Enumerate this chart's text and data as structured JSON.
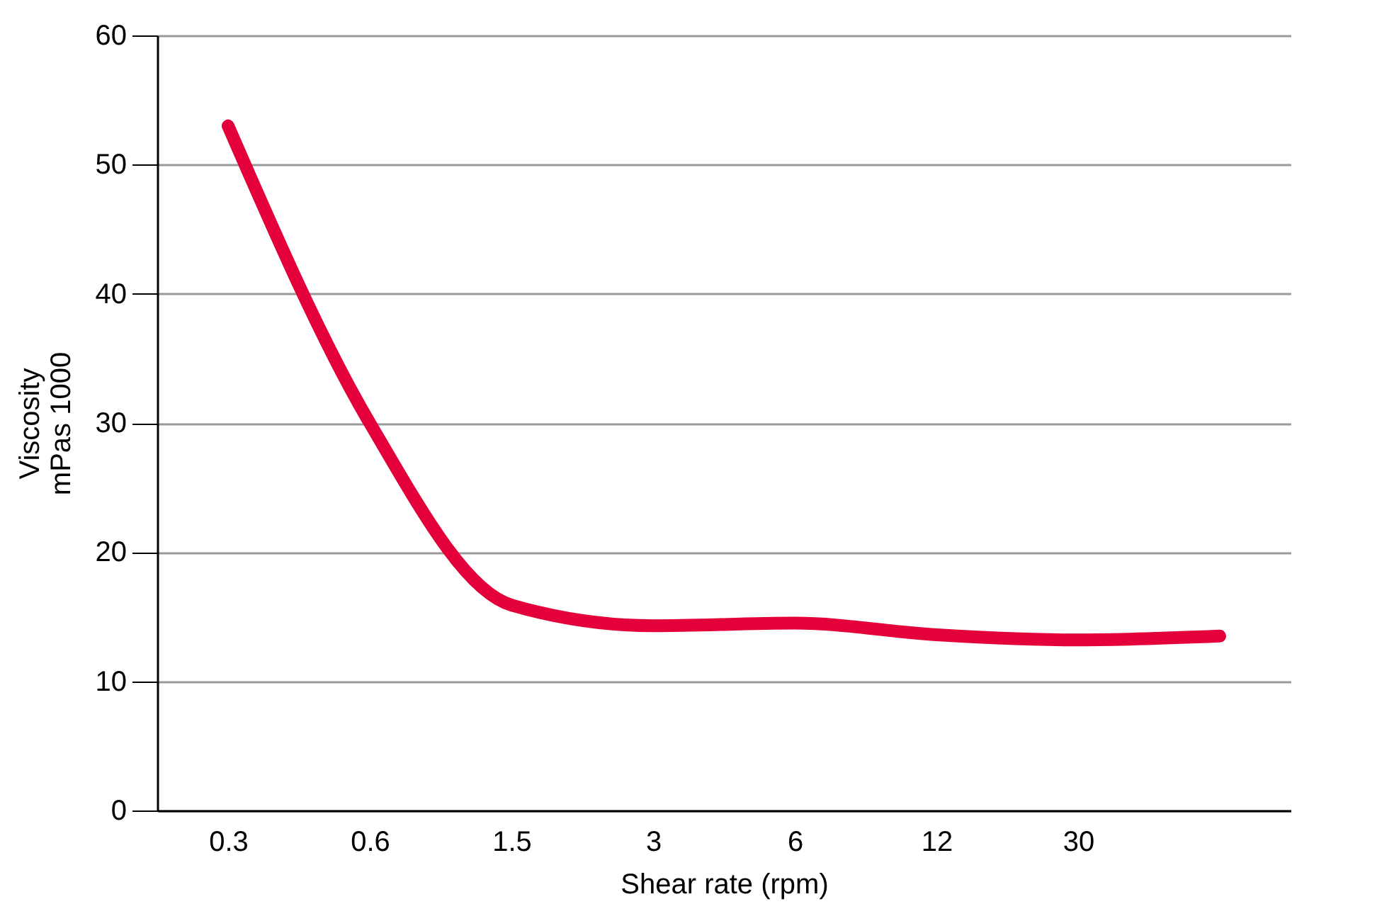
{
  "chart_data": {
    "type": "line",
    "xlabel": "Shear rate (rpm)",
    "ylabel": "Viscosity\nmPas 1000",
    "categories": [
      "0.3",
      "0.6",
      "1.5",
      "3",
      "6",
      "12",
      "30",
      null
    ],
    "series": [
      {
        "color": "#e4003a",
        "values": [
          53,
          30,
          15.9,
          14.3,
          14.5,
          13.6,
          13.2,
          13.5
        ]
      }
    ],
    "ylim": [
      0,
      60
    ],
    "yticks": [
      0,
      10,
      20,
      30,
      40,
      50,
      60
    ],
    "grid": "y",
    "line_style": "solid",
    "legend": false
  }
}
